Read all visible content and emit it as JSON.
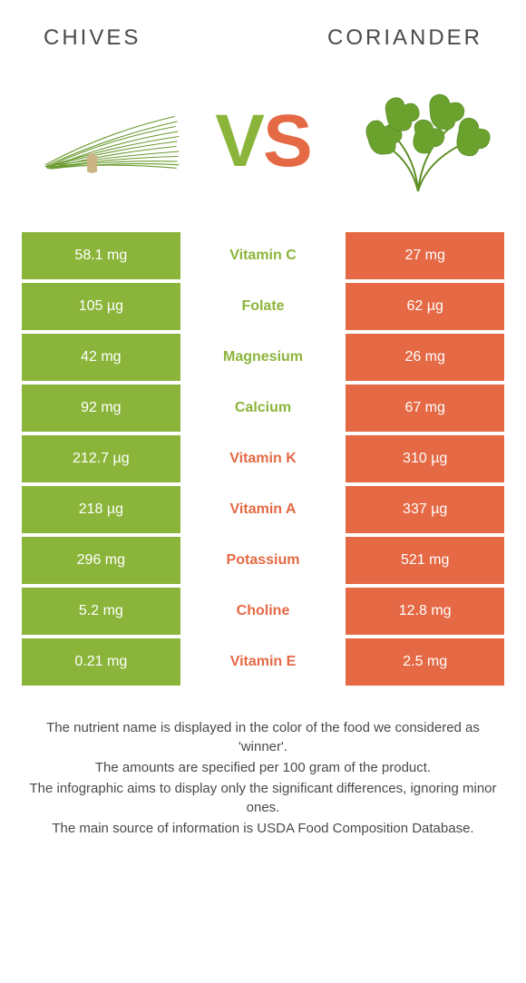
{
  "header": {
    "left": "Chives",
    "right": "Coriander"
  },
  "vs": {
    "v": "V",
    "s": "S"
  },
  "colors": {
    "left": "#8bb53a",
    "right": "#e46944"
  },
  "rows": [
    {
      "left": "58.1 mg",
      "name": "Vitamin C",
      "right": "27 mg",
      "winner": "left"
    },
    {
      "left": "105 µg",
      "name": "Folate",
      "right": "62 µg",
      "winner": "left"
    },
    {
      "left": "42 mg",
      "name": "Magnesium",
      "right": "26 mg",
      "winner": "left"
    },
    {
      "left": "92 mg",
      "name": "Calcium",
      "right": "67 mg",
      "winner": "left"
    },
    {
      "left": "212.7 µg",
      "name": "Vitamin K",
      "right": "310 µg",
      "winner": "right"
    },
    {
      "left": "218 µg",
      "name": "Vitamin A",
      "right": "337 µg",
      "winner": "right"
    },
    {
      "left": "296 mg",
      "name": "Potassium",
      "right": "521 mg",
      "winner": "right"
    },
    {
      "left": "5.2 mg",
      "name": "Choline",
      "right": "12.8 mg",
      "winner": "right"
    },
    {
      "left": "0.21 mg",
      "name": "Vitamin E",
      "right": "2.5 mg",
      "winner": "right"
    }
  ],
  "footer": {
    "l1": "The nutrient name is displayed in the color of the food we considered as 'winner'.",
    "l2": "The amounts are specified per 100 gram of the product.",
    "l3": "The infographic aims to display only the significant differences, ignoring minor ones.",
    "l4": "The main source of information is USDA Food Composition Database."
  }
}
